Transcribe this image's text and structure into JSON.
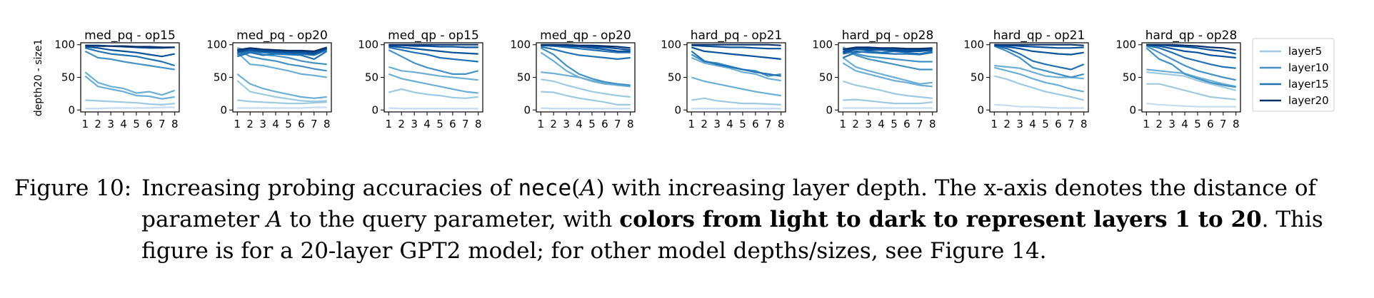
{
  "figure": {
    "ylabel": "depth20 - size1",
    "legend": [
      "layer5",
      "layer10",
      "layer15",
      "layer20"
    ],
    "legend_colors": [
      "#9ecae1",
      "#4292c6",
      "#2171b5",
      "#08306b"
    ],
    "layer_colors": [
      "#c6dbef",
      "#9ecae1",
      "#6baed6",
      "#4292c6",
      "#2171b5",
      "#08519c",
      "#08306b"
    ]
  },
  "chart_data": [
    {
      "type": "line",
      "title": "med_pq - op15",
      "x": [
        1,
        2,
        3,
        4,
        5,
        6,
        7,
        8
      ],
      "ylim": [
        0,
        100
      ],
      "yticks": [
        0,
        50,
        100
      ],
      "grid": false,
      "series": [
        {
          "values": [
            2,
            2,
            3,
            3,
            3,
            3,
            4,
            4
          ]
        },
        {
          "values": [
            15,
            14,
            13,
            12,
            11,
            9,
            8,
            10
          ]
        },
        {
          "values": [
            52,
            36,
            32,
            28,
            22,
            21,
            17,
            20
          ]
        },
        {
          "values": [
            58,
            42,
            36,
            33,
            26,
            28,
            23,
            30
          ]
        },
        {
          "values": [
            90,
            80,
            78,
            74,
            71,
            68,
            65,
            62
          ]
        },
        {
          "values": [
            95,
            90,
            86,
            84,
            82,
            78,
            74,
            68
          ]
        },
        {
          "values": [
            97,
            95,
            92,
            90,
            88,
            85,
            82,
            86
          ]
        },
        {
          "name": "layer20",
          "values": [
            99,
            99,
            98,
            97,
            96,
            95,
            95,
            96
          ]
        },
        {
          "values": [
            99,
            98,
            98,
            98,
            97,
            97,
            96,
            96
          ]
        }
      ]
    },
    {
      "type": "line",
      "title": "med_pq - op20",
      "x": [
        1,
        2,
        3,
        4,
        5,
        6,
        7,
        8
      ],
      "ylim": [
        0,
        100
      ],
      "yticks": [
        0,
        50,
        100
      ],
      "grid": false,
      "series": [
        {
          "values": [
            3,
            3,
            3,
            3,
            3,
            3,
            4,
            4
          ]
        },
        {
          "values": [
            15,
            13,
            12,
            11,
            10,
            10,
            11,
            12
          ]
        },
        {
          "values": [
            45,
            28,
            24,
            20,
            17,
            14,
            13,
            14
          ]
        },
        {
          "values": [
            55,
            40,
            33,
            28,
            24,
            20,
            18,
            20
          ]
        },
        {
          "values": [
            88,
            70,
            68,
            64,
            60,
            55,
            53,
            50
          ]
        },
        {
          "values": [
            92,
            82,
            78,
            75,
            70,
            67,
            63,
            60
          ]
        },
        {
          "values": [
            95,
            90,
            85,
            83,
            80,
            75,
            72,
            70
          ]
        },
        {
          "values": [
            82,
            88,
            84,
            86,
            85,
            84,
            78,
            90
          ]
        },
        {
          "values": [
            85,
            90,
            88,
            87,
            86,
            86,
            84,
            92
          ]
        },
        {
          "values": [
            88,
            92,
            90,
            89,
            88,
            88,
            86,
            94
          ]
        },
        {
          "values": [
            90,
            93,
            91,
            90,
            90,
            89,
            88,
            95
          ]
        },
        {
          "values": [
            92,
            95,
            93,
            92,
            91,
            91,
            90,
            96
          ]
        }
      ]
    },
    {
      "type": "line",
      "title": "med_qp - op15",
      "x": [
        1,
        2,
        3,
        4,
        5,
        6,
        7,
        8
      ],
      "ylim": [
        0,
        100
      ],
      "yticks": [
        0,
        50,
        100
      ],
      "grid": false,
      "series": [
        {
          "values": [
            3,
            2,
            2,
            2,
            2,
            2,
            2,
            2
          ]
        },
        {
          "values": [
            27,
            32,
            27,
            24,
            22,
            19,
            18,
            20
          ]
        },
        {
          "values": [
            55,
            48,
            44,
            40,
            36,
            32,
            28,
            26
          ]
        },
        {
          "values": [
            66,
            60,
            58,
            55,
            52,
            50,
            48,
            46
          ]
        },
        {
          "values": [
            92,
            82,
            72,
            65,
            60,
            55,
            55,
            60
          ]
        },
        {
          "values": [
            96,
            92,
            88,
            85,
            80,
            78,
            76,
            74
          ]
        },
        {
          "values": [
            98,
            96,
            94,
            92,
            90,
            88,
            87,
            86
          ]
        },
        {
          "values": [
            99,
            99,
            98,
            98,
            97,
            97,
            96,
            96
          ]
        },
        {
          "values": [
            100,
            100,
            100,
            100,
            100,
            100,
            100,
            100
          ]
        }
      ]
    },
    {
      "type": "line",
      "title": "med_qp - op20",
      "x": [
        1,
        2,
        3,
        4,
        5,
        6,
        7,
        8
      ],
      "ylim": [
        0,
        100
      ],
      "yticks": [
        0,
        50,
        100
      ],
      "grid": false,
      "series": [
        {
          "values": [
            3,
            2,
            2,
            2,
            2,
            2,
            2,
            2
          ]
        },
        {
          "values": [
            28,
            27,
            22,
            18,
            15,
            12,
            8,
            8
          ]
        },
        {
          "values": [
            47,
            44,
            38,
            33,
            28,
            25,
            22,
            20
          ]
        },
        {
          "values": [
            58,
            56,
            53,
            50,
            45,
            42,
            38,
            36
          ]
        },
        {
          "values": [
            88,
            75,
            60,
            50,
            44,
            40,
            38,
            36
          ]
        },
        {
          "values": [
            95,
            85,
            68,
            55,
            48,
            43,
            40,
            38
          ]
        },
        {
          "values": [
            97,
            93,
            88,
            84,
            82,
            80,
            78,
            80
          ]
        },
        {
          "values": [
            99,
            98,
            96,
            94,
            92,
            90,
            88,
            88
          ]
        },
        {
          "values": [
            99,
            99,
            98,
            97,
            95,
            93,
            90,
            90
          ]
        },
        {
          "values": [
            100,
            100,
            99,
            98,
            97,
            96,
            94,
            92
          ]
        },
        {
          "values": [
            100,
            100,
            100,
            99,
            99,
            98,
            97,
            95
          ]
        }
      ]
    },
    {
      "type": "line",
      "title": "hard_pq - op21",
      "x": [
        1,
        2,
        3,
        4,
        5,
        6,
        7,
        8
      ],
      "ylim": [
        0,
        100
      ],
      "yticks": [
        0,
        50,
        100
      ],
      "grid": false,
      "series": [
        {
          "values": [
            2,
            2,
            2,
            2,
            2,
            2,
            2,
            2
          ]
        },
        {
          "values": [
            15,
            18,
            14,
            12,
            10,
            10,
            9,
            8
          ]
        },
        {
          "values": [
            50,
            44,
            40,
            36,
            32,
            28,
            25,
            22
          ]
        },
        {
          "values": [
            80,
            72,
            68,
            64,
            58,
            55,
            48,
            45
          ]
        },
        {
          "values": [
            85,
            74,
            72,
            67,
            62,
            60,
            52,
            55
          ]
        },
        {
          "values": [
            90,
            75,
            70,
            66,
            62,
            58,
            55,
            52
          ]
        },
        {
          "values": [
            96,
            90,
            88,
            86,
            84,
            82,
            80,
            78
          ]
        },
        {
          "values": [
            99,
            98,
            97,
            96,
            96,
            95,
            94,
            94
          ]
        },
        {
          "values": [
            100,
            100,
            100,
            100,
            100,
            100,
            100,
            99
          ]
        }
      ]
    },
    {
      "type": "line",
      "title": "hard_pq - op28",
      "x": [
        1,
        2,
        3,
        4,
        5,
        6,
        7,
        8
      ],
      "ylim": [
        0,
        100
      ],
      "yticks": [
        0,
        50,
        100
      ],
      "grid": false,
      "series": [
        {
          "values": [
            3,
            3,
            3,
            3,
            3,
            3,
            3,
            3
          ]
        },
        {
          "values": [
            15,
            16,
            14,
            12,
            10,
            10,
            10,
            12
          ]
        },
        {
          "values": [
            44,
            38,
            34,
            30,
            25,
            22,
            20,
            18
          ]
        },
        {
          "values": [
            72,
            60,
            55,
            50,
            45,
            42,
            38,
            36
          ]
        },
        {
          "values": [
            80,
            66,
            60,
            55,
            50,
            45,
            40,
            42
          ]
        },
        {
          "values": [
            94,
            84,
            78,
            74,
            70,
            66,
            62,
            62
          ]
        },
        {
          "values": [
            96,
            86,
            82,
            80,
            78,
            76,
            74,
            74
          ]
        },
        {
          "values": [
            86,
            90,
            88,
            87,
            86,
            86,
            85,
            88
          ]
        },
        {
          "values": [
            80,
            88,
            90,
            88,
            90,
            88,
            86,
            90
          ]
        },
        {
          "values": [
            88,
            93,
            92,
            92,
            91,
            90,
            90,
            92
          ]
        },
        {
          "values": [
            90,
            95,
            94,
            93,
            93,
            92,
            92,
            94
          ]
        },
        {
          "values": [
            93,
            96,
            96,
            95,
            95,
            94,
            94,
            95
          ]
        }
      ]
    },
    {
      "type": "line",
      "title": "hard_qp - op21",
      "x": [
        1,
        2,
        3,
        4,
        5,
        6,
        7,
        8
      ],
      "ylim": [
        0,
        100
      ],
      "yticks": [
        0,
        50,
        100
      ],
      "grid": false,
      "series": [
        {
          "values": [
            8,
            7,
            5,
            5,
            4,
            3,
            3,
            3
          ]
        },
        {
          "values": [
            52,
            47,
            40,
            34,
            28,
            24,
            20,
            15
          ]
        },
        {
          "values": [
            65,
            60,
            55,
            48,
            42,
            38,
            32,
            28
          ]
        },
        {
          "values": [
            68,
            66,
            64,
            58,
            52,
            50,
            50,
            48
          ]
        },
        {
          "values": [
            98,
            90,
            80,
            65,
            60,
            55,
            50,
            55
          ]
        },
        {
          "values": [
            98,
            94,
            86,
            75,
            70,
            66,
            62,
            70
          ]
        },
        {
          "values": [
            99,
            97,
            94,
            90,
            88,
            86,
            85,
            88
          ]
        },
        {
          "values": [
            100,
            99,
            98,
            97,
            96,
            95,
            95,
            96
          ]
        },
        {
          "values": [
            100,
            100,
            100,
            100,
            100,
            100,
            100,
            99
          ]
        }
      ]
    },
    {
      "type": "line",
      "title": "hard_qp - op28",
      "x": [
        1,
        2,
        3,
        4,
        5,
        6,
        7,
        8
      ],
      "ylim": [
        0,
        100
      ],
      "yticks": [
        0,
        50,
        100
      ],
      "grid": false,
      "series": [
        {
          "values": [
            10,
            8,
            7,
            6,
            5,
            5,
            5,
            5
          ]
        },
        {
          "values": [
            40,
            40,
            35,
            30,
            25,
            20,
            18,
            16
          ]
        },
        {
          "values": [
            58,
            56,
            54,
            52,
            45,
            40,
            35,
            30
          ]
        },
        {
          "values": [
            62,
            60,
            58,
            56,
            50,
            45,
            40,
            36
          ]
        },
        {
          "values": [
            95,
            78,
            70,
            55,
            48,
            42,
            38,
            35
          ]
        },
        {
          "values": [
            98,
            88,
            78,
            68,
            60,
            55,
            50,
            46
          ]
        },
        {
          "values": [
            99,
            95,
            88,
            80,
            75,
            70,
            66,
            64
          ]
        },
        {
          "values": [
            100,
            98,
            94,
            90,
            88,
            84,
            82,
            80
          ]
        },
        {
          "values": [
            100,
            100,
            98,
            97,
            95,
            92,
            90,
            86
          ]
        },
        {
          "values": [
            100,
            100,
            100,
            99,
            98,
            96,
            95,
            92
          ]
        }
      ]
    }
  ],
  "caption": {
    "label": "Figure 10:",
    "t1": "Increasing probing accuracies of ",
    "fn": "nece",
    "lp": "(",
    "var1": "A",
    "rp": ")",
    "t2": " with increasing layer depth. The x-axis denotes the distance of parameter ",
    "var2": "A",
    "t3": " to the query parameter, with ",
    "bold": "colors from light to dark to represent layers 1 to 20",
    "t4": ". This figure is for a 20-layer GPT2 model; for other model depths/sizes, see Figure 14."
  }
}
